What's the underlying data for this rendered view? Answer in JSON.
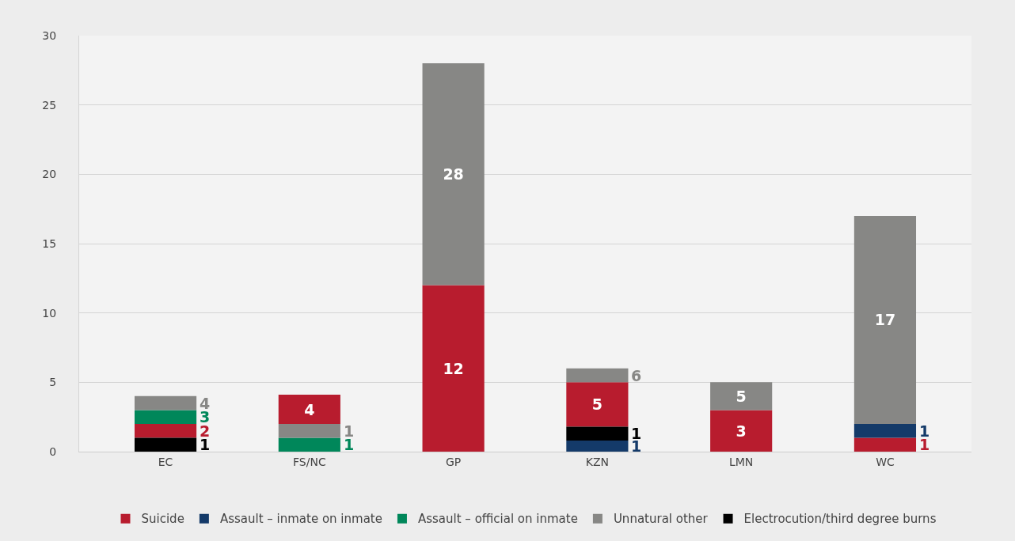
{
  "chart_data": {
    "type": "bar",
    "categories": [
      "EC",
      "FS/NC",
      "GP",
      "KZN",
      "LMN",
      "WC"
    ],
    "series": [
      {
        "name": "Suicide",
        "color": "#b81c2e",
        "values": [
          1,
          2.1,
          12,
          3.2,
          3,
          1
        ],
        "base": [
          1,
          2,
          0,
          1.8,
          0,
          0
        ],
        "value_labels": [
          "2",
          "4",
          "12",
          "5",
          "3",
          "1"
        ]
      },
      {
        "name": "Assault – inmate on inmate",
        "color": "#143a69",
        "values": [
          null,
          null,
          null,
          0.8,
          null,
          1
        ],
        "base": [
          null,
          null,
          null,
          0,
          null,
          1
        ],
        "value_labels": [
          null,
          null,
          null,
          "1",
          null,
          "1"
        ]
      },
      {
        "name": "Assault – official on inmate",
        "color": "#00875a",
        "values": [
          1,
          1,
          null,
          null,
          null,
          null
        ],
        "base": [
          2,
          0,
          null,
          null,
          null,
          null
        ],
        "value_labels": [
          "3",
          "1",
          null,
          null,
          null,
          null
        ]
      },
      {
        "name": "Unnatural other",
        "color": "#878785",
        "values": [
          1,
          1,
          16,
          1,
          2,
          15
        ],
        "base": [
          3,
          1,
          12,
          5,
          3,
          2
        ],
        "value_labels": [
          "4",
          "1",
          "28",
          "6",
          "5",
          "17"
        ]
      },
      {
        "name": "Electrocution/third degree burns",
        "color": "#000000",
        "values": [
          1,
          null,
          null,
          1,
          null,
          null
        ],
        "base": [
          0,
          null,
          null,
          0.8,
          null,
          null
        ],
        "value_labels": [
          "1",
          null,
          null,
          "1",
          null,
          null
        ]
      }
    ],
    "ylim": [
      0,
      30
    ],
    "yticks": [
      0,
      5,
      10,
      15,
      20,
      25,
      30
    ],
    "grid": "y",
    "legend": "bottom"
  }
}
